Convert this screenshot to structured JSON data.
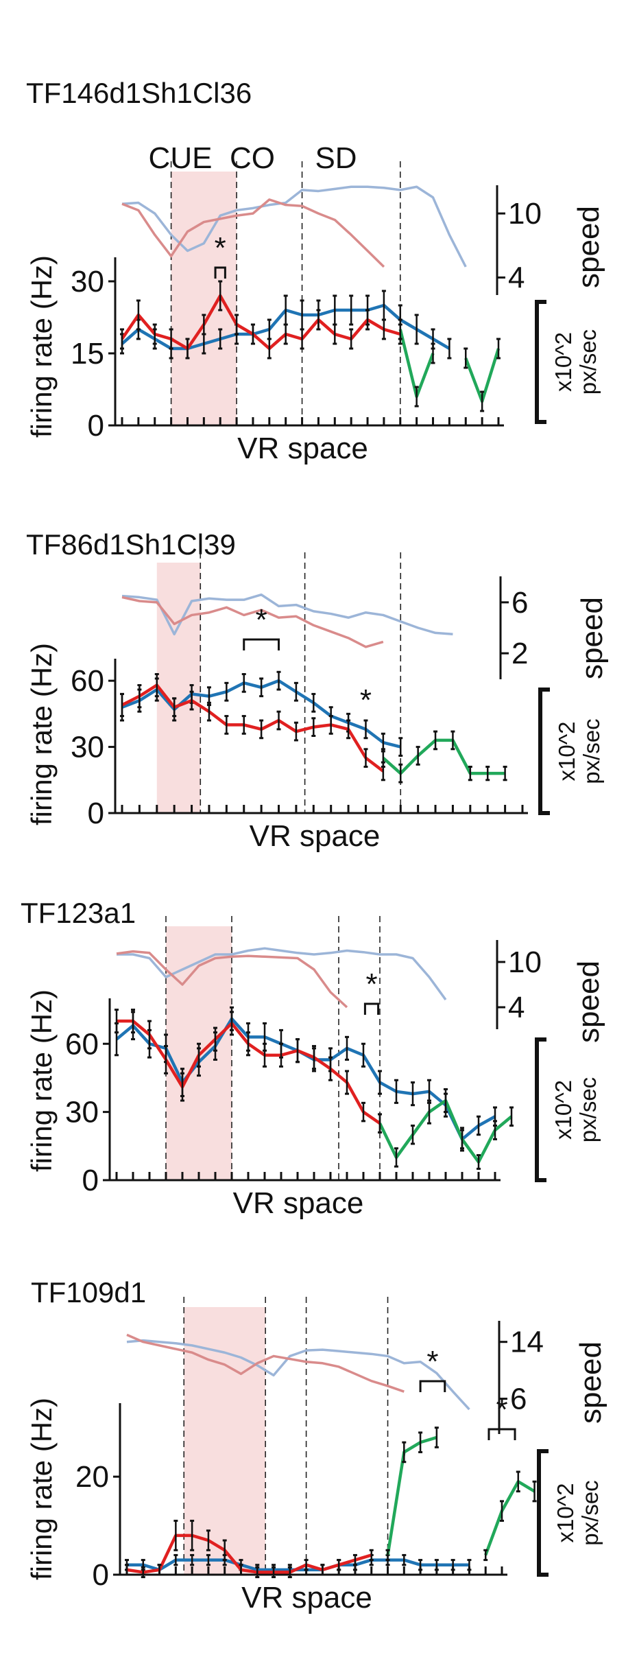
{
  "figure": {
    "xlabel": "VR space",
    "ylabel": "firing rate (Hz)",
    "speed_label": "speed",
    "speed_unit_line1": "x10^2",
    "speed_unit_line2": "px/sec",
    "colors": {
      "series_red": "#e02020",
      "series_blue": "#1f74b4",
      "series_green": "#21a85a",
      "speed_red": "#d98b8b",
      "speed_blue": "#9cb5d8",
      "cue_shade": "#f8dede",
      "axis": "#111111"
    }
  },
  "chart_data": [
    {
      "type": "line",
      "title": "TF146d1Sh1Cl36",
      "region_labels": [
        "CUE",
        "CO",
        "SD"
      ],
      "xlabel": "VR space",
      "ylabel": "firing rate (Hz)",
      "ylim": [
        0,
        35
      ],
      "yticks": [
        "0",
        "15",
        "30"
      ],
      "n_bins": 24,
      "cue_shade": [
        3,
        7
      ],
      "dividers": [
        3,
        7,
        11,
        17
      ],
      "speed": {
        "ticks": [
          "10",
          "4"
        ],
        "tick_values": [
          10,
          4
        ],
        "range": [
          3,
          12
        ],
        "blue": [
          10.9,
          11,
          10,
          8,
          6.5,
          7.2,
          9.8,
          10.3,
          10.5,
          10.8,
          11,
          12.2,
          12.1,
          12.3,
          12.5,
          12.5,
          12.4,
          12.2,
          12.5,
          11.5,
          8,
          5
        ],
        "red": [
          10.9,
          10.3,
          8,
          6,
          8.3,
          9.2,
          9.5,
          9.8,
          10,
          11.3,
          10.8,
          10.7,
          10,
          9.4,
          8,
          6.5,
          5
        ]
      },
      "series": [
        {
          "name": "red",
          "values": [
            18,
            23,
            19,
            18,
            16,
            21,
            27,
            21,
            19,
            16,
            19,
            18,
            22,
            19,
            18,
            22,
            20,
            19
          ],
          "err": [
            2,
            3,
            2,
            2,
            2,
            2,
            3,
            2,
            2,
            2,
            2,
            2,
            2,
            2,
            2,
            2,
            2,
            2
          ]
        },
        {
          "name": "blue",
          "values": [
            17,
            20,
            18,
            16,
            16,
            17,
            18,
            19,
            19,
            20,
            24,
            23,
            23,
            24,
            24,
            24,
            25,
            22,
            20,
            18,
            16
          ],
          "err": [
            2,
            2,
            2,
            2,
            2,
            2,
            2,
            2,
            2,
            2,
            3,
            3,
            3,
            3,
            3,
            3,
            3,
            3,
            3,
            2,
            2
          ]
        },
        {
          "name": "green",
          "start": 17,
          "values": [
            20,
            6,
            15,
            null,
            14,
            5,
            16
          ],
          "err": [
            2,
            2,
            2,
            0,
            2,
            2,
            2
          ]
        }
      ],
      "significance": [
        {
          "label": "*",
          "x0": 5.7,
          "x1": 6.3
        }
      ]
    },
    {
      "type": "line",
      "title": "TF86d1Sh1Cl39",
      "region_labels": [],
      "xlabel": "VR space",
      "ylabel": "firing rate (Hz)",
      "ylim": [
        0,
        70
      ],
      "yticks": [
        "0",
        "30",
        "60"
      ],
      "n_bins": 24,
      "cue_shade": [
        2,
        4.5
      ],
      "dividers": [
        4.5,
        10.5,
        16
      ],
      "speed": {
        "ticks": [
          "6",
          "2"
        ],
        "tick_values": [
          6,
          2
        ],
        "range": [
          0.5,
          7.5
        ],
        "blue": [
          6.5,
          6.4,
          6.2,
          3.5,
          6.1,
          6.3,
          6.2,
          6.2,
          6.6,
          5.7,
          5.8,
          5.3,
          5.1,
          4.8,
          5.2,
          5.0,
          4.5,
          4.0,
          3.6,
          3.5
        ],
        "red": [
          6.4,
          6.1,
          6.0,
          4.3,
          5.0,
          5.2,
          5.6,
          5.0,
          5.4,
          4.8,
          4.9,
          4.2,
          3.7,
          3.2,
          2.5,
          2.9
        ]
      },
      "series": [
        {
          "name": "red",
          "values": [
            49,
            53,
            58,
            48,
            51,
            46,
            40,
            40,
            38,
            42,
            37,
            39,
            40,
            38,
            25,
            19
          ],
          "err": [
            5,
            5,
            5,
            4,
            4,
            4,
            4,
            4,
            4,
            4,
            4,
            4,
            4,
            4,
            4,
            4
          ]
        },
        {
          "name": "blue",
          "values": [
            48,
            51,
            56,
            47,
            54,
            53,
            55,
            59,
            57,
            60,
            55,
            50,
            44,
            41,
            38,
            32,
            30
          ],
          "err": [
            6,
            5,
            5,
            5,
            4,
            4,
            4,
            4,
            4,
            4,
            4,
            4,
            4,
            4,
            4,
            4,
            4
          ]
        },
        {
          "name": "green",
          "start": 15,
          "values": [
            25,
            18,
            26,
            33,
            33,
            18,
            18,
            18
          ],
          "err": [
            4,
            4,
            4,
            4,
            4,
            3,
            3,
            3
          ]
        }
      ],
      "significance": [
        {
          "label": "*",
          "x0": 7,
          "x1": 9
        },
        {
          "label": "*",
          "x0": 14,
          "x1": 14,
          "lone": true
        }
      ]
    },
    {
      "type": "line",
      "title": "TF123a1",
      "region_labels": [],
      "xlabel": "VR space",
      "ylabel": "firing rate (Hz)",
      "ylim": [
        0,
        80
      ],
      "yticks": [
        "0",
        "30",
        "60"
      ],
      "n_bins": 24,
      "cue_shade": [
        3,
        7
      ],
      "dividers": [
        3,
        7,
        13.5,
        16
      ],
      "speed": {
        "ticks": [
          "10",
          "4"
        ],
        "tick_values": [
          10,
          4
        ],
        "range": [
          2,
          12
        ],
        "blue": [
          11,
          11,
          10.5,
          8,
          9,
          10,
          11,
          11,
          11.5,
          11.8,
          11.5,
          11.2,
          11,
          11.2,
          11.5,
          11.3,
          11,
          11,
          10.5,
          8,
          5
        ],
        "red": [
          11.1,
          11.4,
          11.2,
          9.0,
          7.0,
          9.5,
          10.5,
          10.7,
          10.8,
          10.7,
          10.6,
          10.5,
          9.0,
          6.0,
          4.0
        ]
      },
      "series": [
        {
          "name": "red",
          "values": [
            70,
            70,
            64,
            53,
            41,
            55,
            62,
            69,
            60,
            55,
            55,
            57,
            54,
            49,
            43,
            30,
            25
          ],
          "err": [
            5,
            5,
            6,
            6,
            6,
            5,
            5,
            5,
            5,
            5,
            5,
            5,
            5,
            5,
            5,
            4,
            4
          ]
        },
        {
          "name": "blue",
          "values": [
            62,
            68,
            60,
            58,
            43,
            52,
            59,
            71,
            63,
            63,
            60,
            57,
            53,
            53,
            58,
            55,
            43,
            39,
            38,
            39,
            33,
            18,
            24,
            28
          ],
          "err": [
            7,
            6,
            6,
            6,
            6,
            6,
            6,
            5,
            6,
            6,
            6,
            5,
            5,
            5,
            5,
            5,
            5,
            5,
            5,
            5,
            5,
            5,
            4,
            4
          ]
        },
        {
          "name": "green",
          "start": 16,
          "values": [
            25,
            10,
            20,
            30,
            35,
            18,
            8,
            22,
            28
          ],
          "err": [
            4,
            4,
            4,
            5,
            5,
            4,
            3,
            4,
            4
          ]
        }
      ],
      "significance": [
        {
          "label": "*",
          "x0": 15.1,
          "x1": 15.9
        }
      ]
    },
    {
      "type": "line",
      "title": "TF109d1",
      "region_labels": [],
      "xlabel": "VR space",
      "ylabel": "firing rate (Hz)",
      "ylim": [
        0,
        35
      ],
      "yticks": [
        "0",
        "20"
      ],
      "n_bins": 24,
      "cue_shade": [
        3.5,
        8.5
      ],
      "dividers": [
        3.5,
        8.5,
        11,
        16
      ],
      "speed": {
        "ticks": [
          "14",
          "6"
        ],
        "tick_values": [
          14,
          6
        ],
        "range": [
          2,
          16
        ],
        "blue": [
          14,
          14.2,
          14,
          13.8,
          13.5,
          13,
          12.5,
          11.8,
          10.7,
          9.3,
          12,
          12.8,
          12.9,
          12.7,
          12.5,
          12.3,
          12,
          11,
          11.2,
          9.6,
          7,
          4.5
        ],
        "red": [
          15,
          14,
          13.5,
          13,
          12.5,
          11.5,
          10.8,
          9.5,
          11,
          12,
          11.6,
          11.2,
          11,
          10.5,
          9.5,
          8.5,
          7.8,
          7
        ]
      },
      "series": [
        {
          "name": "red",
          "values": [
            1,
            0.5,
            1,
            8,
            8,
            7,
            5,
            1,
            0.5,
            0.5,
            0.5,
            2,
            1,
            2,
            3,
            4
          ],
          "err": [
            1,
            1,
            1,
            3,
            3,
            2,
            2,
            1,
            1,
            1,
            1,
            1,
            1,
            1,
            1,
            1
          ]
        },
        {
          "name": "blue",
          "values": [
            2,
            2,
            1,
            3,
            3,
            3,
            3,
            2,
            1,
            1,
            1,
            1,
            1,
            2,
            2,
            3,
            3,
            3,
            2,
            2,
            2,
            2
          ],
          "err": [
            1,
            1,
            1,
            1,
            1,
            1,
            1,
            1,
            1,
            1,
            1,
            1,
            1,
            1,
            1,
            1,
            1,
            1,
            1,
            1,
            1,
            1
          ]
        },
        {
          "name": "green",
          "start": 16,
          "values": [
            4,
            25,
            27,
            28,
            null,
            null,
            4,
            13,
            19,
            17
          ],
          "err": [
            1,
            2,
            2,
            2,
            0,
            0,
            1,
            2,
            2,
            2
          ]
        }
      ],
      "significance": [
        {
          "label": "*",
          "x0": 18,
          "x1": 19.5
        },
        {
          "label": "*",
          "x0": 22.2,
          "x1": 23.8
        }
      ]
    }
  ]
}
